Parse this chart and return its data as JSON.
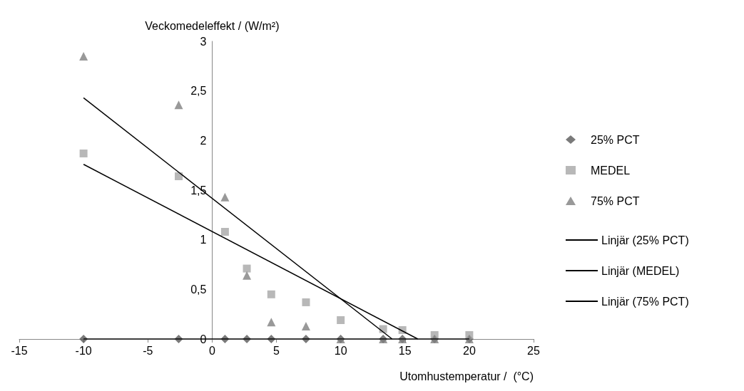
{
  "chart_data": {
    "type": "scatter",
    "xlabel": "Utomhustemperatur /  (°C)",
    "ylabel": "Veckomedeleffekt / (W/m²)",
    "x": [
      -10,
      -2.6,
      1,
      2.7,
      4.6,
      7.3,
      10,
      13.3,
      14.8,
      17.3,
      20
    ],
    "series": [
      {
        "name": "25% PCT",
        "color": "#595959",
        "marker": "diamond",
        "values": [
          0,
          0,
          0,
          0,
          0,
          0,
          0,
          0,
          0,
          0,
          0
        ]
      },
      {
        "name": "MEDEL",
        "color": "#a6a6a6",
        "marker": "square",
        "values": [
          1.87,
          1.64,
          1.08,
          0.71,
          0.45,
          0.37,
          0.19,
          0.1,
          0.09,
          0.04,
          0.04
        ]
      },
      {
        "name": "75% PCT",
        "color": "#7f7f7f",
        "marker": "triangle",
        "values": [
          2.85,
          2.36,
          1.43,
          0.64,
          0.17,
          0.13,
          0,
          0,
          0,
          0,
          0
        ]
      },
      {
        "name": "Linjär (25% PCT)",
        "type": "line",
        "color": "#000000",
        "marker": "none",
        "x": [
          -10,
          20
        ],
        "values": [
          0,
          0
        ]
      },
      {
        "name": "Linjär (MEDEL)",
        "type": "line",
        "color": "#000000",
        "marker": "none",
        "x": [
          -10,
          16
        ],
        "values": [
          1.76,
          0
        ]
      },
      {
        "name": "Linjär (75% PCT)",
        "type": "line",
        "color": "#000000",
        "marker": "none",
        "x": [
          -10,
          14
        ],
        "values": [
          2.43,
          0
        ]
      }
    ],
    "xlim": [
      -15,
      25
    ],
    "xticks": [
      -15,
      -10,
      -5,
      0,
      5,
      10,
      15,
      20,
      25
    ],
    "ylim": [
      0,
      3
    ],
    "yticks": [
      0,
      {
        "value": 0.5,
        "label": "0,5"
      },
      1,
      {
        "value": 1.5,
        "label": "1,5"
      },
      2,
      {
        "value": 2.5,
        "label": "2,5"
      },
      3
    ],
    "grid": false,
    "legend": "right"
  }
}
